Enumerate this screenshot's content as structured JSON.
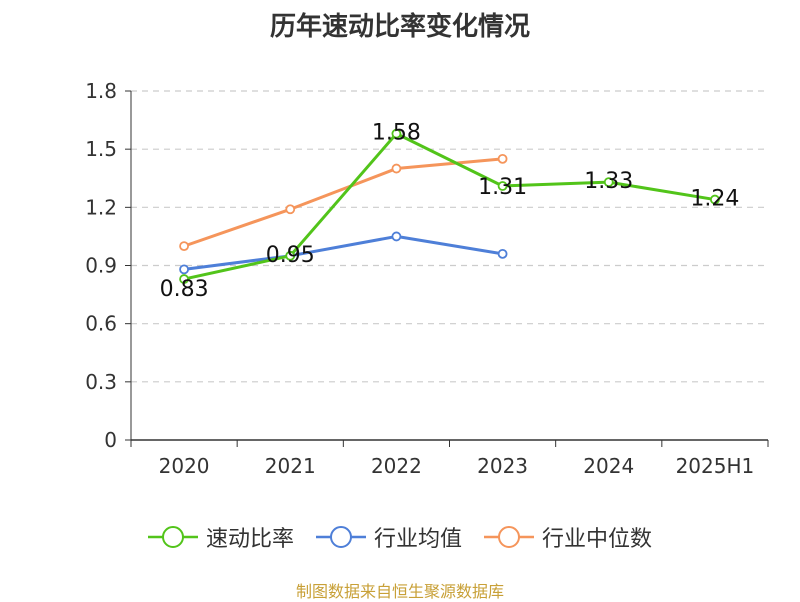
{
  "chart_data": {
    "type": "line",
    "title": "历年速动比率变化情况",
    "categories": [
      "2020",
      "2021",
      "2022",
      "2023",
      "2024",
      "2025H1"
    ],
    "ylim": [
      0,
      1.8
    ],
    "yticks": [
      "0",
      "0.3",
      "0.6",
      "0.9",
      "1.2",
      "1.5",
      "1.8"
    ],
    "grid": true,
    "legend_position": "bottom",
    "series": [
      {
        "name": "速动比率",
        "color": "#52c41a",
        "values": [
          0.83,
          0.95,
          1.58,
          1.31,
          1.33,
          1.24
        ],
        "labels": [
          "0.83",
          "0.95",
          "1.58",
          "1.31",
          "1.33",
          "1.24"
        ]
      },
      {
        "name": "行业均值",
        "color": "#4e7fd8",
        "values": [
          0.88,
          0.95,
          1.05,
          0.96,
          null,
          null
        ]
      },
      {
        "name": "行业中位数",
        "color": "#f5955b",
        "values": [
          1.0,
          1.19,
          1.4,
          1.45,
          null,
          null
        ]
      }
    ]
  },
  "source_note": "制图数据来自恒生聚源数据库"
}
